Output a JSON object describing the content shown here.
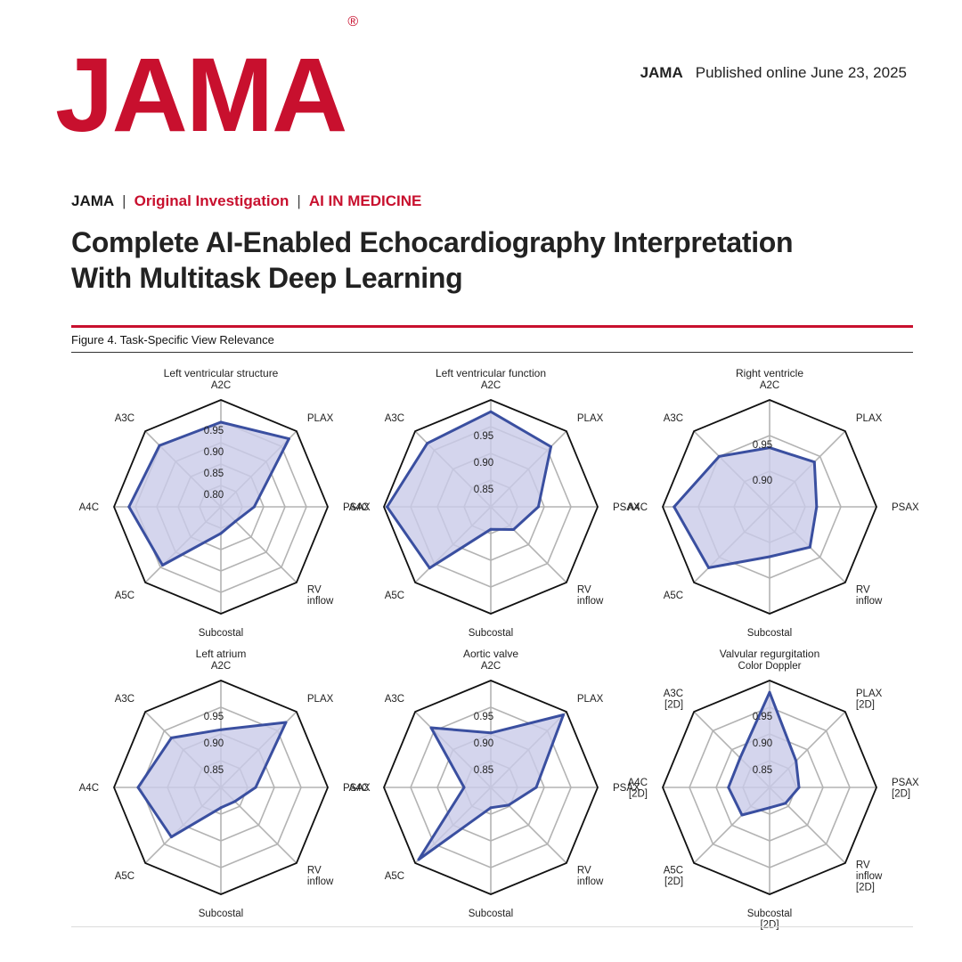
{
  "header": {
    "logo": "JAMA",
    "logo_mark": "®",
    "journal": "JAMA",
    "published": "Published online June 23, 2025"
  },
  "section": {
    "journal": "JAMA",
    "type": "Original Investigation",
    "topic": "AI IN MEDICINE"
  },
  "article_title": {
    "line1": "Complete AI-Enabled Echocardiography Interpretation",
    "line2": "With Multitask Deep Learning"
  },
  "figure_caption": "Figure 4. Task-Specific View Relevance",
  "colors": {
    "brand_red": "#c8102e",
    "series_stroke": "#3a4fa0",
    "series_fill": "#c9cbe9",
    "grid": "#b3b3b3",
    "outer": "#111111"
  },
  "chart_data": [
    {
      "type": "radar",
      "title": "Left ventricular structure",
      "axes": [
        "A2C",
        "PLAX",
        "PSAX",
        "RV\ninflow",
        "Subcostal",
        "A5C",
        "A4C",
        "A3C"
      ],
      "rmin": 0.75,
      "rmax": 1.0,
      "ticks": [
        0.8,
        0.85,
        0.9,
        0.95
      ],
      "values": [
        0.948,
        0.975,
        0.828,
        0.798,
        0.812,
        0.943,
        0.965,
        0.953
      ]
    },
    {
      "type": "radar",
      "title": "Left ventricular function",
      "axes": [
        "A2C",
        "PLAX",
        "PSAX",
        "RV\ninflow",
        "Subcostal",
        "A5C",
        "A4C",
        "A3C"
      ],
      "rmin": 0.8,
      "rmax": 1.0,
      "ticks": [
        0.85,
        0.9,
        0.95
      ],
      "values": [
        0.978,
        0.959,
        0.889,
        0.86,
        0.842,
        0.962,
        0.994,
        0.968
      ]
    },
    {
      "type": "radar",
      "title": "Right ventricle",
      "axes": [
        "A2C",
        "PLAX",
        "PSAX",
        "RV\ninflow",
        "Subcostal",
        "A5C",
        "A4C",
        "A3C"
      ],
      "rmin": 0.85,
      "rmax": 1.0,
      "ticks": [
        0.9,
        0.95
      ],
      "values": [
        0.933,
        0.939,
        0.916,
        0.93,
        0.92,
        0.971,
        0.984,
        0.95
      ]
    },
    {
      "type": "radar",
      "title": "Left atrium",
      "axes": [
        "A2C",
        "PLAX",
        "PSAX",
        "RV\ninflow",
        "Subcostal",
        "A5C",
        "A4C",
        "A3C"
      ],
      "rmin": 0.8,
      "rmax": 1.0,
      "ticks": [
        0.85,
        0.9,
        0.95
      ],
      "values": [
        0.908,
        0.972,
        0.865,
        0.837,
        0.838,
        0.931,
        0.955,
        0.931
      ]
    },
    {
      "type": "radar",
      "title": "Aortic valve",
      "axes": [
        "A2C",
        "PLAX",
        "PSAX",
        "RV\ninflow",
        "Subcostal",
        "A5C",
        "A4C",
        "A3C"
      ],
      "rmin": 0.8,
      "rmax": 1.0,
      "ticks": [
        0.85,
        0.9,
        0.95
      ],
      "values": [
        0.902,
        0.992,
        0.885,
        0.847,
        0.838,
        0.991,
        0.85,
        0.958
      ]
    },
    {
      "type": "radar",
      "title": "Valvular regurgitation",
      "axes": [
        "Color Doppler",
        "PLAX\n[2D]",
        "PSAX\n[2D]",
        "RV\ninflow\n[2D]",
        "Subcostal\n[2D]",
        "A5C\n[2D]",
        "A4C\n[2D]",
        "A3C\n[2D]"
      ],
      "rmin": 0.8,
      "rmax": 1.0,
      "ticks": [
        0.85,
        0.9,
        0.95
      ],
      "values": [
        0.978,
        0.87,
        0.855,
        0.842,
        0.838,
        0.873,
        0.877,
        0.878
      ]
    }
  ]
}
